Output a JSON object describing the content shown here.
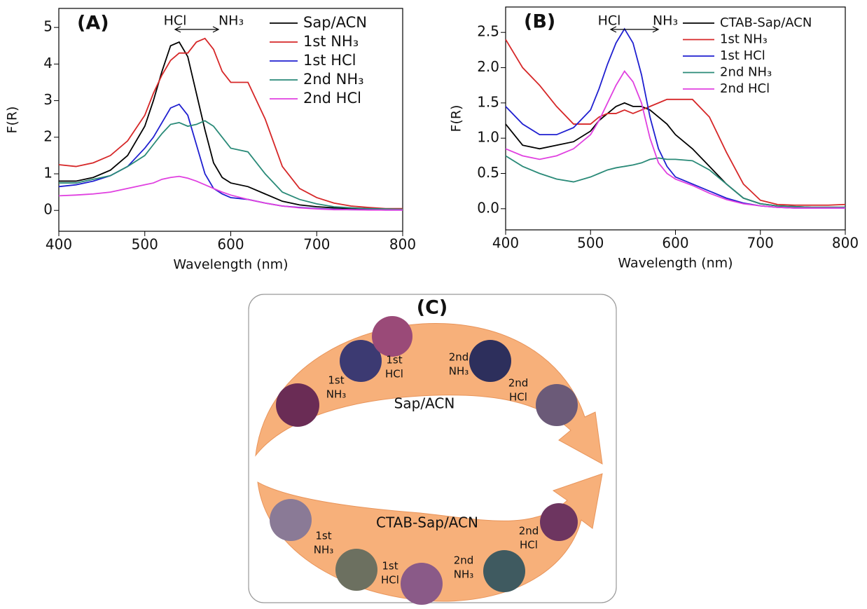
{
  "chart_data": [
    {
      "type": "line",
      "title": "(A)",
      "xlabel": "Wavelength (nm)",
      "ylabel": "F(R)",
      "annotations": [
        "HCl",
        "NH₃"
      ],
      "x": [
        400,
        420,
        440,
        460,
        480,
        500,
        510,
        520,
        530,
        540,
        550,
        560,
        570,
        580,
        590,
        600,
        620,
        640,
        660,
        680,
        700,
        720,
        740,
        760,
        780,
        800
      ],
      "xlim": [
        400,
        800
      ],
      "xticks": [
        400,
        500,
        600,
        700,
        800
      ],
      "ylim": [
        -0.57,
        5.52
      ],
      "yticks": [
        0,
        1,
        2,
        3,
        4,
        5
      ],
      "grid": false,
      "legend": "upper right",
      "series": [
        {
          "name": "Sap/ACN",
          "color": "#000000",
          "values": [
            0.8,
            0.8,
            0.9,
            1.1,
            1.5,
            2.3,
            3.0,
            3.8,
            4.5,
            4.6,
            4.2,
            3.2,
            2.2,
            1.3,
            0.9,
            0.75,
            0.65,
            0.45,
            0.25,
            0.15,
            0.1,
            0.07,
            0.05,
            0.03,
            0.02,
            0.02
          ]
        },
        {
          "name": "1st NH₃",
          "color": "#d62728",
          "values": [
            1.25,
            1.2,
            1.3,
            1.5,
            1.9,
            2.6,
            3.2,
            3.7,
            4.1,
            4.3,
            4.3,
            4.6,
            4.7,
            4.4,
            3.8,
            3.5,
            3.5,
            2.5,
            1.2,
            0.6,
            0.35,
            0.2,
            0.12,
            0.08,
            0.05,
            0.05
          ]
        },
        {
          "name": "1st HCl",
          "color": "#1f1fd0",
          "values": [
            0.65,
            0.7,
            0.8,
            0.95,
            1.2,
            1.7,
            2.0,
            2.4,
            2.8,
            2.9,
            2.6,
            1.8,
            1.0,
            0.6,
            0.45,
            0.35,
            0.3,
            0.2,
            0.12,
            0.08,
            0.05,
            0.03,
            0.02,
            0.02,
            0.01,
            0.01
          ]
        },
        {
          "name": "2nd NH₃",
          "color": "#2a8a78",
          "values": [
            0.75,
            0.75,
            0.85,
            0.95,
            1.2,
            1.5,
            1.8,
            2.1,
            2.35,
            2.4,
            2.3,
            2.35,
            2.45,
            2.3,
            2.0,
            1.7,
            1.6,
            1.0,
            0.5,
            0.3,
            0.18,
            0.1,
            0.07,
            0.05,
            0.04,
            0.03
          ]
        },
        {
          "name": "2nd HCl",
          "color": "#e040e0",
          "values": [
            0.4,
            0.42,
            0.45,
            0.5,
            0.6,
            0.7,
            0.75,
            0.85,
            0.9,
            0.93,
            0.88,
            0.8,
            0.7,
            0.6,
            0.5,
            0.42,
            0.3,
            0.2,
            0.12,
            0.07,
            0.04,
            0.02,
            0.02,
            0.01,
            0.01,
            0.01
          ]
        }
      ]
    },
    {
      "type": "line",
      "title": "(B)",
      "xlabel": "Wavelength (nm)",
      "ylabel": "F(R)",
      "annotations": [
        "HCl",
        "NH₃"
      ],
      "x": [
        400,
        420,
        440,
        460,
        480,
        500,
        510,
        520,
        530,
        540,
        550,
        560,
        570,
        580,
        590,
        600,
        620,
        640,
        660,
        680,
        700,
        720,
        740,
        760,
        780,
        800
      ],
      "xlim": [
        400,
        800
      ],
      "xticks": [
        400,
        500,
        600,
        700,
        800
      ],
      "ylim": [
        -0.3,
        2.86
      ],
      "yticks": [
        {
          "value": 0,
          "label": "0.0"
        },
        0.5,
        {
          "value": 1,
          "label": "1.0"
        },
        1.5,
        {
          "value": 2,
          "label": "2.0"
        },
        2.5
      ],
      "grid": false,
      "legend": "upper right",
      "series": [
        {
          "name": "CTAB-Sap/ACN",
          "color": "#000000",
          "values": [
            1.2,
            0.9,
            0.85,
            0.9,
            0.95,
            1.1,
            1.25,
            1.35,
            1.45,
            1.5,
            1.45,
            1.45,
            1.4,
            1.3,
            1.2,
            1.05,
            0.85,
            0.6,
            0.35,
            0.15,
            0.07,
            0.04,
            0.03,
            0.02,
            0.02,
            0.02
          ]
        },
        {
          "name": "1st NH₃",
          "color": "#d62728",
          "values": [
            2.4,
            2.0,
            1.75,
            1.45,
            1.2,
            1.2,
            1.3,
            1.35,
            1.35,
            1.4,
            1.35,
            1.4,
            1.45,
            1.5,
            1.55,
            1.55,
            1.55,
            1.3,
            0.8,
            0.35,
            0.12,
            0.06,
            0.05,
            0.05,
            0.05,
            0.06
          ]
        },
        {
          "name": "1st HCl",
          "color": "#1f1fd0",
          "values": [
            1.45,
            1.2,
            1.05,
            1.05,
            1.15,
            1.4,
            1.7,
            2.05,
            2.35,
            2.55,
            2.35,
            1.9,
            1.3,
            0.85,
            0.6,
            0.45,
            0.35,
            0.25,
            0.15,
            0.08,
            0.04,
            0.02,
            0.01,
            0.01,
            0.01,
            0.01
          ]
        },
        {
          "name": "2nd NH₃",
          "color": "#2a8a78",
          "values": [
            0.75,
            0.6,
            0.5,
            0.42,
            0.38,
            0.45,
            0.5,
            0.55,
            0.58,
            0.6,
            0.62,
            0.65,
            0.7,
            0.72,
            0.7,
            0.7,
            0.68,
            0.55,
            0.35,
            0.15,
            0.07,
            0.04,
            0.03,
            0.02,
            0.02,
            0.02
          ]
        },
        {
          "name": "2nd HCl",
          "color": "#e040e0",
          "values": [
            0.85,
            0.75,
            0.7,
            0.75,
            0.85,
            1.05,
            1.25,
            1.5,
            1.75,
            1.95,
            1.8,
            1.5,
            1.0,
            0.65,
            0.5,
            0.42,
            0.33,
            0.22,
            0.13,
            0.07,
            0.04,
            0.02,
            0.01,
            0.01,
            0.01,
            0.01
          ]
        }
      ]
    }
  ],
  "diagram": {
    "title": "(C)",
    "rows": [
      {
        "name": "Sap/ACN",
        "steps": [
          [
            "1st",
            "NH₃"
          ],
          [
            "1st",
            "HCl"
          ],
          [
            "2nd",
            "NH₃"
          ],
          [
            "2nd",
            "HCl"
          ]
        ]
      },
      {
        "name": "CTAB-Sap/ACN",
        "steps": [
          [
            "1st",
            "NH₃"
          ],
          [
            "1st",
            "HCl"
          ],
          [
            "2nd",
            "NH₃"
          ],
          [
            "2nd",
            "HCl"
          ]
        ]
      }
    ]
  }
}
